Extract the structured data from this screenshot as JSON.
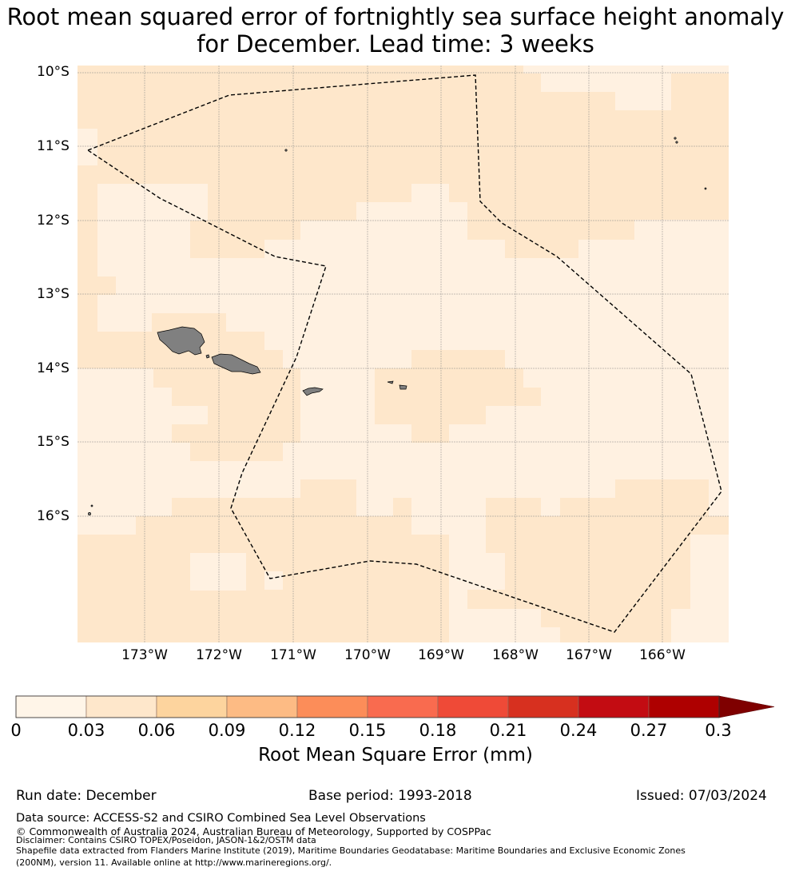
{
  "title_line1": "Root mean squared error of fortnightly sea surface height anomaly",
  "title_line2": "for December. Lead time: 3 weeks",
  "map": {
    "lat_labels": [
      "10°S",
      "11°S",
      "12°S",
      "13°S",
      "14°S",
      "15°S",
      "16°S"
    ],
    "lon_labels": [
      "173°W",
      "172°W",
      "171°W",
      "170°W",
      "169°W",
      "168°W",
      "167°W",
      "166°W"
    ],
    "colors": {
      "level0": "#fff1e1",
      "level1": "#fee7cb",
      "land": "#808080",
      "boundary": "#000000",
      "grid": "#888888"
    }
  },
  "colorbar": {
    "ticks": [
      "0",
      "0.03",
      "0.06",
      "0.09",
      "0.12",
      "0.15",
      "0.18",
      "0.21",
      "0.24",
      "0.27",
      "0.3"
    ],
    "colors": [
      "#fff5e8",
      "#fee7cb",
      "#fdd49e",
      "#fdbb84",
      "#fc8d59",
      "#f96b4f",
      "#ef4a37",
      "#d7301f",
      "#c30c12",
      "#ae0000"
    ],
    "extend_color": "#7f0000",
    "label": "Root Mean Square Error (mm)"
  },
  "footer": {
    "run_date": "Run date: December",
    "base_period": "Base period: 1993-2018",
    "issued": "Issued: 07/03/2024",
    "data_source": "Data source: ACCESS-S2 and CSIRO Combined Sea Level Observations",
    "copyright": "© Commonwealth of Australia 2024, Australian Bureau of Meteorology, Supported by COSPPac",
    "disclaimer": "Disclaimer: Contains CSIRO TOPEX/Poseidon, JASON-1&2/OSTM data",
    "shapefile_line1": "Shapefile data extracted from Flanders Marine Institute (2019), Maritime Boundaries Geodatabase: Maritime Boundaries and Exclusive Economic Zones",
    "shapefile_line2": "(200NM), version 11. Available online at http://www.marineregions.org/."
  }
}
